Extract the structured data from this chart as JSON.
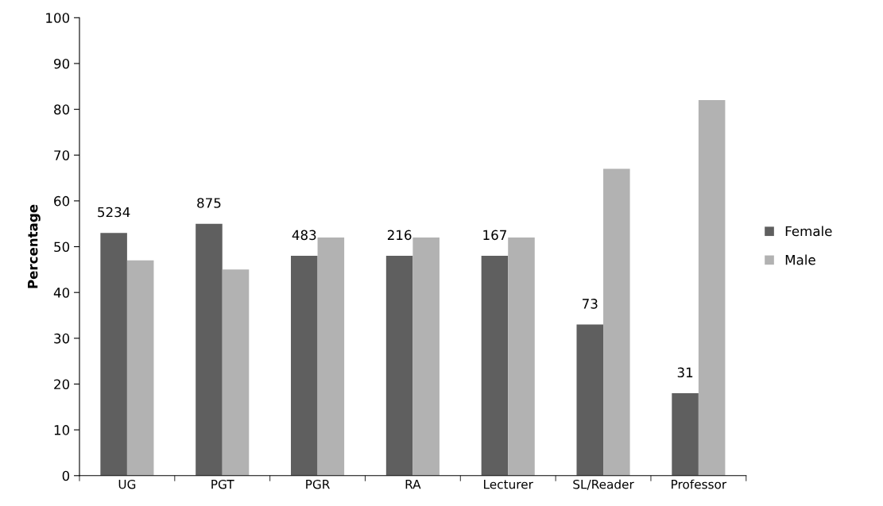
{
  "chart_data": {
    "type": "bar",
    "ylabel": "Percentage",
    "categories": [
      "UG",
      "PGT",
      "PGR",
      "RA",
      "Lecturer",
      "SL/Reader",
      "Professor"
    ],
    "series": [
      {
        "name": "Female",
        "color": "#5f5f5f",
        "values": [
          53,
          55,
          48,
          48,
          48,
          33,
          18
        ]
      },
      {
        "name": "Male",
        "color": "#b2b2b2",
        "values": [
          47,
          45,
          52,
          52,
          52,
          67,
          82
        ]
      }
    ],
    "annotations": [
      "5234",
      "875",
      "483",
      "216",
      "167",
      "73",
      "31"
    ],
    "ylim": [
      0,
      100
    ],
    "yticks": [
      0,
      10,
      20,
      30,
      40,
      50,
      60,
      70,
      80,
      90,
      100
    ],
    "grid": false,
    "legend": "right"
  }
}
